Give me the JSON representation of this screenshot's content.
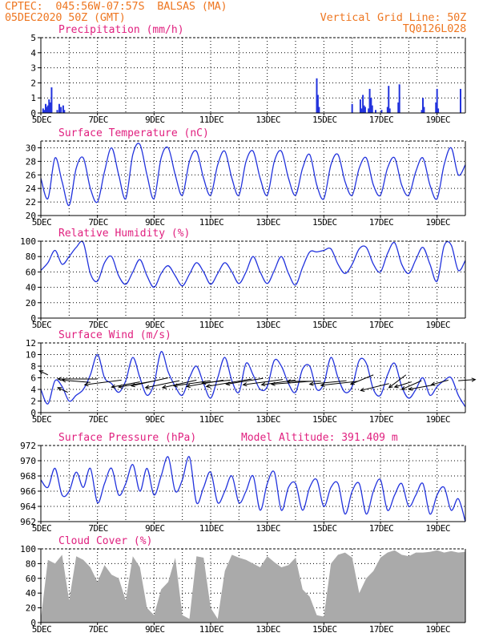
{
  "header": {
    "line1": "CPTEC:  045:56W-07:57S  BALSAS (MA)",
    "line2": "05DEC2020 50Z (GMT)",
    "right1": "Vertical Grid Line: 50Z",
    "right2": "TQ0126L028"
  },
  "colors": {
    "header": "#ee7722",
    "title": "#e0207f",
    "series": "#2233dd",
    "cloud": "#aaaaaa",
    "grid": "#000000"
  },
  "chart_data": [
    {
      "id": "precip",
      "type": "bar",
      "title": "Precipitation (mm/h)",
      "xlim": [
        0,
        15
      ],
      "ylim": [
        0,
        5
      ],
      "yticks": [
        0,
        1,
        2,
        3,
        4,
        5
      ],
      "xticks": [
        {
          "x": 0,
          "label": "5DEC"
        },
        {
          "x": 2,
          "label": "7DEC"
        },
        {
          "x": 4,
          "label": "9DEC"
        },
        {
          "x": 6,
          "label": "11DEC"
        },
        {
          "x": 8,
          "label": "13DEC"
        },
        {
          "x": 10,
          "label": "15DEC"
        },
        {
          "x": 12,
          "label": "17DEC"
        },
        {
          "x": 14,
          "label": "19DEC"
        }
      ],
      "x": [
        0.08,
        0.12,
        0.17,
        0.21,
        0.25,
        0.29,
        0.33,
        0.38,
        0.58,
        0.65,
        0.71,
        0.79,
        0.83,
        9.75,
        9.79,
        9.83,
        11.0,
        11.29,
        11.33,
        11.38,
        11.42,
        11.46,
        11.58,
        11.62,
        11.67,
        11.71,
        11.83,
        12.04,
        12.25,
        12.29,
        12.33,
        12.63,
        12.67,
        13.46,
        13.5,
        13.54,
        13.96,
        14.0,
        14.04,
        14.83
      ],
      "values": [
        0.3,
        0.2,
        0.6,
        0.4,
        0.5,
        0.9,
        0.7,
        1.7,
        0.2,
        0.6,
        0.4,
        0.5,
        0.2,
        2.3,
        1.2,
        0.4,
        0.6,
        0.9,
        0.3,
        1.2,
        0.5,
        0.4,
        0.3,
        1.6,
        1.0,
        0.5,
        0.2,
        0.2,
        0.4,
        1.8,
        0.3,
        0.7,
        1.9,
        0.2,
        1.0,
        0.4,
        0.7,
        1.6,
        0.3,
        1.6
      ]
    },
    {
      "id": "temp",
      "type": "line",
      "title": "Surface Temperature (nC)",
      "xlim": [
        0,
        15
      ],
      "ylim": [
        20,
        31
      ],
      "yticks": [
        20,
        22,
        24,
        26,
        28,
        30
      ],
      "xticks": [
        {
          "x": 0,
          "label": "5DEC"
        },
        {
          "x": 2,
          "label": "7DEC"
        },
        {
          "x": 4,
          "label": "9DEC"
        },
        {
          "x": 6,
          "label": "11DEC"
        },
        {
          "x": 8,
          "label": "13DEC"
        },
        {
          "x": 10,
          "label": "15DEC"
        },
        {
          "x": 12,
          "label": "17DEC"
        },
        {
          "x": 14,
          "label": "19DEC"
        }
      ],
      "series": [
        {
          "x": [
            0,
            0.25,
            0.5,
            0.75,
            1.0,
            1.25,
            1.5,
            1.75,
            2.0,
            2.25,
            2.5,
            2.75,
            3.0,
            3.25,
            3.5,
            3.75,
            4.0,
            4.25,
            4.5,
            4.75,
            5.0,
            5.25,
            5.5,
            5.75,
            6.0,
            6.25,
            6.5,
            6.75,
            7.0,
            7.25,
            7.5,
            7.75,
            8.0,
            8.25,
            8.5,
            8.75,
            9.0,
            9.25,
            9.5,
            9.75,
            10.0,
            10.25,
            10.5,
            10.75,
            11.0,
            11.25,
            11.5,
            11.75,
            12.0,
            12.25,
            12.5,
            12.75,
            13.0,
            13.25,
            13.5,
            13.75,
            14.0,
            14.25,
            14.5,
            14.75,
            15.0
          ],
          "values": [
            25.5,
            22.5,
            28.5,
            25.0,
            21.5,
            27.0,
            28.5,
            24.0,
            22.0,
            26.5,
            30.0,
            26.0,
            22.5,
            29.0,
            30.5,
            26.0,
            22.5,
            28.5,
            30.0,
            26.0,
            23.0,
            28.0,
            29.5,
            25.5,
            23.0,
            27.5,
            29.5,
            25.5,
            23.0,
            28.0,
            29.5,
            25.5,
            23.0,
            28.0,
            29.5,
            25.5,
            23.0,
            27.0,
            29.0,
            24.5,
            22.5,
            27.5,
            29.0,
            25.0,
            23.0,
            27.0,
            28.5,
            24.5,
            23.0,
            27.0,
            28.5,
            24.5,
            23.0,
            26.5,
            28.5,
            24.5,
            22.5,
            27.5,
            30.0,
            26.0,
            27.5
          ]
        }
      ]
    },
    {
      "id": "rh",
      "type": "line",
      "title": "Relative Humidity (%)",
      "xlim": [
        0,
        15
      ],
      "ylim": [
        0,
        100
      ],
      "yticks": [
        0,
        20,
        40,
        60,
        80,
        100
      ],
      "xticks": [
        {
          "x": 0,
          "label": "5DEC"
        },
        {
          "x": 2,
          "label": "7DEC"
        },
        {
          "x": 4,
          "label": "9DEC"
        },
        {
          "x": 6,
          "label": "11DEC"
        },
        {
          "x": 8,
          "label": "13DEC"
        },
        {
          "x": 10,
          "label": "15DEC"
        },
        {
          "x": 12,
          "label": "17DEC"
        },
        {
          "x": 14,
          "label": "19DEC"
        }
      ],
      "series": [
        {
          "x": [
            0,
            0.25,
            0.5,
            0.75,
            1.0,
            1.25,
            1.5,
            1.75,
            2.0,
            2.25,
            2.5,
            2.75,
            3.0,
            3.25,
            3.5,
            3.75,
            4.0,
            4.25,
            4.5,
            4.75,
            5.0,
            5.25,
            5.5,
            5.75,
            6.0,
            6.25,
            6.5,
            6.75,
            7.0,
            7.25,
            7.5,
            7.75,
            8.0,
            8.25,
            8.5,
            8.75,
            9.0,
            9.25,
            9.5,
            9.75,
            10.0,
            10.25,
            10.5,
            10.75,
            11.0,
            11.25,
            11.5,
            11.75,
            12.0,
            12.25,
            12.5,
            12.75,
            13.0,
            13.25,
            13.5,
            13.75,
            14.0,
            14.25,
            14.5,
            14.75,
            15.0
          ],
          "values": [
            62,
            72,
            88,
            70,
            80,
            92,
            98,
            58,
            48,
            72,
            80,
            55,
            44,
            60,
            76,
            55,
            40,
            58,
            68,
            55,
            42,
            57,
            72,
            60,
            44,
            58,
            72,
            60,
            45,
            60,
            80,
            60,
            45,
            62,
            80,
            58,
            43,
            66,
            86,
            86,
            88,
            90,
            70,
            58,
            70,
            90,
            92,
            70,
            60,
            84,
            98,
            70,
            58,
            76,
            92,
            70,
            48,
            94,
            95,
            62,
            75
          ]
        }
      ]
    },
    {
      "id": "wind",
      "type": "line",
      "title": "Surface Wind (m/s)",
      "xlim": [
        0,
        15
      ],
      "ylim": [
        0,
        12
      ],
      "yticks": [
        0,
        2,
        4,
        6,
        8,
        10,
        12
      ],
      "xticks": [
        {
          "x": 0,
          "label": "5DEC"
        },
        {
          "x": 2,
          "label": "7DEC"
        },
        {
          "x": 4,
          "label": "9DEC"
        },
        {
          "x": 6,
          "label": "11DEC"
        },
        {
          "x": 8,
          "label": "13DEC"
        },
        {
          "x": 10,
          "label": "15DEC"
        },
        {
          "x": 12,
          "label": "17DEC"
        },
        {
          "x": 14,
          "label": "19DEC"
        }
      ],
      "series": [
        {
          "x": [
            0,
            0.25,
            0.5,
            0.75,
            1.0,
            1.25,
            1.5,
            1.75,
            2.0,
            2.25,
            2.5,
            2.75,
            3.0,
            3.25,
            3.5,
            3.75,
            4.0,
            4.25,
            4.5,
            4.75,
            5.0,
            5.25,
            5.5,
            5.75,
            6.0,
            6.25,
            6.5,
            6.75,
            7.0,
            7.25,
            7.5,
            7.75,
            8.0,
            8.25,
            8.5,
            8.75,
            9.0,
            9.25,
            9.5,
            9.75,
            10.0,
            10.25,
            10.5,
            10.75,
            11.0,
            11.25,
            11.5,
            11.75,
            12.0,
            12.25,
            12.5,
            12.75,
            13.0,
            13.25,
            13.5,
            13.75,
            14.0,
            14.25,
            14.5,
            14.75,
            15.0
          ],
          "values": [
            4.0,
            1.5,
            5.5,
            4.5,
            2.0,
            3.0,
            4.0,
            6.5,
            10.0,
            6.0,
            5.0,
            3.5,
            5.5,
            9.5,
            6.0,
            3.0,
            5.0,
            10.5,
            7.0,
            4.5,
            3.0,
            6.0,
            8.0,
            5.0,
            2.5,
            6.0,
            9.5,
            5.5,
            3.5,
            8.5,
            6.5,
            4.0,
            4.5,
            9.0,
            8.0,
            5.0,
            3.5,
            7.5,
            8.0,
            4.0,
            5.0,
            9.5,
            6.0,
            3.5,
            4.5,
            9.0,
            8.5,
            4.0,
            3.0,
            6.5,
            8.5,
            4.5,
            2.5,
            4.0,
            6.0,
            3.0,
            4.5,
            5.5,
            6.0,
            3.0,
            1.0
          ]
        }
      ],
      "arrows": [
        [
          0.25,
          6.5,
          -0.3,
          0.7
        ],
        [
          0.95,
          3.5,
          -0.35,
          0.8
        ],
        [
          1.75,
          5.2,
          -1.0,
          0.4
        ],
        [
          2.0,
          5.8,
          -1.4,
          0.0
        ],
        [
          2.85,
          5.6,
          -1.3,
          -0.8
        ],
        [
          3.5,
          5.3,
          -1.0,
          -0.9
        ],
        [
          3.95,
          5.4,
          -1.2,
          -1.0
        ],
        [
          4.5,
          6.0,
          -1.3,
          -1.4
        ],
        [
          4.9,
          5.5,
          -1.2,
          -1.2
        ],
        [
          5.5,
          5.6,
          -1.2,
          -1.3
        ],
        [
          6.0,
          5.5,
          -1.3,
          -0.9
        ],
        [
          6.45,
          5.6,
          -1.3,
          -1.1
        ],
        [
          6.7,
          5.6,
          -1.0,
          -0.5
        ],
        [
          7.45,
          5.8,
          -1.6,
          -1.3
        ],
        [
          7.85,
          5.9,
          -1.3,
          -1.0
        ],
        [
          8.55,
          5.7,
          -1.4,
          -0.9
        ],
        [
          9.0,
          5.6,
          -1.2,
          -0.8
        ],
        [
          9.55,
          5.4,
          -1.4,
          -0.5
        ],
        [
          9.9,
          5.4,
          -1.2,
          0.0
        ],
        [
          10.8,
          5.5,
          -1.3,
          -0.6
        ],
        [
          11.2,
          5.4,
          -1.3,
          -0.7
        ],
        [
          11.75,
          6.5,
          -0.8,
          -1.6
        ],
        [
          12.3,
          5.0,
          -1.0,
          -1.2
        ],
        [
          12.9,
          6.5,
          -0.6,
          -2.2
        ],
        [
          13.1,
          5.3,
          -0.6,
          -0.9
        ],
        [
          13.45,
          5.5,
          -0.7,
          -1.5
        ],
        [
          13.9,
          4.8,
          -0.9,
          -0.8
        ],
        [
          14.4,
          5.6,
          -0.6,
          -0.8
        ],
        [
          14.75,
          5.5,
          0.6,
          0.2
        ]
      ]
    },
    {
      "id": "pres",
      "type": "line",
      "title": "Surface Pressure (hPa)",
      "subtitle": "Model Altitude: 391.409 m",
      "xlim": [
        0,
        15
      ],
      "ylim": [
        962,
        972
      ],
      "yticks": [
        962,
        964,
        966,
        968,
        970,
        972
      ],
      "xticks": [
        {
          "x": 0,
          "label": "5DEC"
        },
        {
          "x": 2,
          "label": "7DEC"
        },
        {
          "x": 4,
          "label": "9DEC"
        },
        {
          "x": 6,
          "label": "11DEC"
        },
        {
          "x": 8,
          "label": "13DEC"
        },
        {
          "x": 10,
          "label": "15DEC"
        },
        {
          "x": 12,
          "label": "17DEC"
        },
        {
          "x": 14,
          "label": "19DEC"
        }
      ],
      "series": [
        {
          "x": [
            0,
            0.25,
            0.5,
            0.75,
            1.0,
            1.25,
            1.5,
            1.75,
            2.0,
            2.25,
            2.5,
            2.75,
            3.0,
            3.25,
            3.5,
            3.75,
            4.0,
            4.25,
            4.5,
            4.75,
            5.0,
            5.25,
            5.5,
            5.75,
            6.0,
            6.25,
            6.5,
            6.75,
            7.0,
            7.25,
            7.5,
            7.75,
            8.0,
            8.25,
            8.5,
            8.75,
            9.0,
            9.25,
            9.5,
            9.75,
            10.0,
            10.25,
            10.5,
            10.75,
            11.0,
            11.25,
            11.5,
            11.75,
            12.0,
            12.25,
            12.5,
            12.75,
            13.0,
            13.25,
            13.5,
            13.75,
            14.0,
            14.25,
            14.5,
            14.75,
            15.0
          ],
          "values": [
            967.5,
            966.5,
            969.0,
            965.5,
            966.0,
            968.5,
            966.5,
            969.0,
            964.5,
            967.0,
            969.0,
            965.5,
            967.0,
            969.5,
            966.0,
            969.0,
            965.5,
            968.0,
            970.5,
            966.0,
            967.5,
            970.5,
            964.5,
            966.5,
            968.5,
            964.5,
            966.0,
            968.0,
            964.5,
            966.0,
            968.0,
            963.5,
            967.0,
            968.5,
            963.5,
            966.5,
            967.0,
            963.5,
            966.5,
            967.5,
            964.0,
            966.5,
            967.0,
            963.0,
            966.0,
            967.0,
            963.0,
            966.0,
            967.5,
            963.5,
            965.5,
            967.0,
            964.0,
            965.5,
            967.0,
            963.0,
            965.5,
            966.5,
            963.5,
            965.0,
            962.0
          ]
        }
      ]
    },
    {
      "id": "cloud",
      "type": "area",
      "title": "Cloud Cover (%)",
      "xlim": [
        0,
        15
      ],
      "ylim": [
        0,
        100
      ],
      "yticks": [
        0,
        20,
        40,
        60,
        80,
        100
      ],
      "xticks": [
        {
          "x": 0,
          "label": "5DEC"
        },
        {
          "x": 2,
          "label": "7DEC"
        },
        {
          "x": 4,
          "label": "9DEC"
        },
        {
          "x": 6,
          "label": "11DEC"
        },
        {
          "x": 8,
          "label": "13DEC"
        },
        {
          "x": 10,
          "label": "15DEC"
        },
        {
          "x": 12,
          "label": "17DEC"
        },
        {
          "x": 14,
          "label": "19DEC"
        }
      ],
      "x": [
        0,
        0.25,
        0.5,
        0.75,
        1.0,
        1.25,
        1.5,
        1.75,
        2.0,
        2.25,
        2.5,
        2.75,
        3.0,
        3.25,
        3.5,
        3.75,
        4.0,
        4.25,
        4.5,
        4.75,
        5.0,
        5.25,
        5.5,
        5.75,
        6.0,
        6.25,
        6.5,
        6.75,
        7.0,
        7.25,
        7.5,
        7.75,
        8.0,
        8.25,
        8.5,
        8.75,
        9.0,
        9.25,
        9.5,
        9.75,
        10.0,
        10.25,
        10.5,
        10.75,
        11.0,
        11.25,
        11.5,
        11.75,
        12.0,
        12.25,
        12.5,
        12.75,
        13.0,
        13.25,
        13.5,
        13.75,
        14.0,
        14.25,
        14.5,
        14.75,
        15.0
      ],
      "values": [
        5,
        85,
        80,
        92,
        30,
        90,
        85,
        75,
        55,
        78,
        65,
        60,
        30,
        90,
        75,
        20,
        10,
        45,
        55,
        88,
        10,
        5,
        90,
        88,
        20,
        5,
        70,
        92,
        88,
        85,
        80,
        75,
        90,
        82,
        75,
        78,
        88,
        45,
        35,
        10,
        8,
        80,
        92,
        95,
        88,
        40,
        60,
        70,
        88,
        95,
        98,
        92,
        90,
        95,
        95,
        96,
        98,
        95,
        97,
        95,
        96
      ]
    }
  ]
}
